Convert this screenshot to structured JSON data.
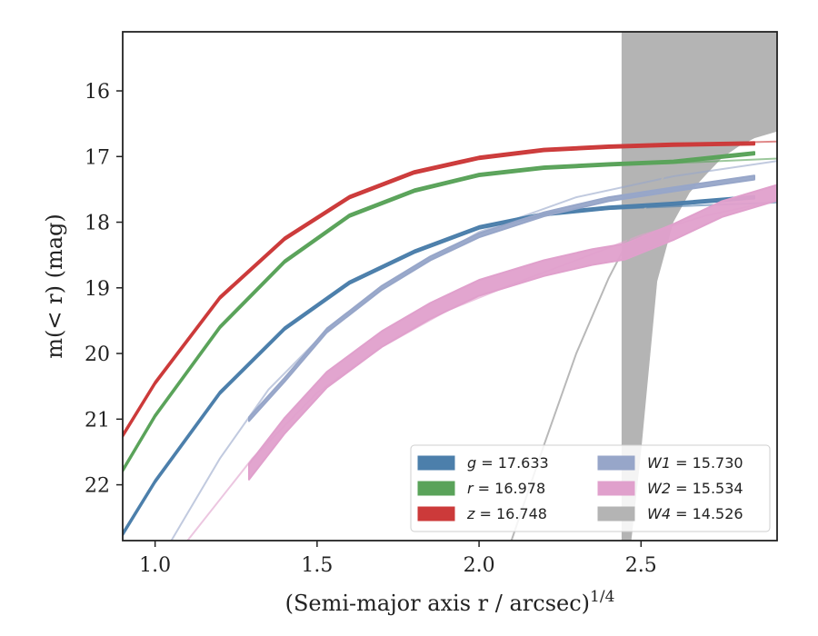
{
  "chart_data": {
    "type": "line",
    "xlabel": "(Semi-major axis r / arcsec)",
    "xlabel_sup": "1/4",
    "ylabel": "m(< r) (mag)",
    "xlim": [
      0.9,
      2.92
    ],
    "ylim": [
      22.85,
      15.1
    ],
    "y_inverted": true,
    "xticks": [
      1.0,
      1.5,
      2.0,
      2.5
    ],
    "xtick_labels": [
      "1.0",
      "1.5",
      "2.0",
      "2.5"
    ],
    "yticks": [
      16,
      17,
      18,
      19,
      20,
      21,
      22
    ],
    "ytick_labels": [
      "16",
      "17",
      "18",
      "19",
      "20",
      "21",
      "22"
    ],
    "legend_position": "lower-right",
    "legend_columns": 2,
    "grid": false,
    "series": [
      {
        "key": "g",
        "name": "g",
        "label_value": "17.633",
        "color": "#4c7fab",
        "style": "band",
        "band_width": 0.04,
        "x": [
          0.9,
          1.0,
          1.2,
          1.4,
          1.6,
          1.8,
          2.0,
          2.2,
          2.4,
          2.6,
          2.85
        ],
        "y": [
          22.75,
          21.95,
          20.6,
          19.62,
          18.92,
          18.45,
          18.08,
          17.88,
          17.78,
          17.72,
          17.62
        ],
        "model_x": [
          2.2,
          2.4,
          2.6,
          2.92
        ],
        "model_y": [
          17.88,
          17.8,
          17.76,
          17.7
        ]
      },
      {
        "key": "r",
        "name": "r",
        "label_value": "16.978",
        "color": "#5aa35a",
        "style": "band",
        "band_width": 0.04,
        "x": [
          0.9,
          1.0,
          1.2,
          1.4,
          1.6,
          1.8,
          2.0,
          2.2,
          2.4,
          2.6,
          2.85
        ],
        "y": [
          21.78,
          20.95,
          19.6,
          18.6,
          17.9,
          17.52,
          17.28,
          17.17,
          17.12,
          17.08,
          16.95
        ],
        "model_x": [
          2.4,
          2.6,
          2.92
        ],
        "model_y": [
          17.12,
          17.1,
          17.03
        ]
      },
      {
        "key": "z",
        "name": "z",
        "label_value": "16.748",
        "color": "#cc3a3a",
        "style": "band",
        "band_width": 0.04,
        "x": [
          0.9,
          1.0,
          1.2,
          1.4,
          1.6,
          1.8,
          2.0,
          2.2,
          2.4,
          2.6,
          2.85
        ],
        "y": [
          21.25,
          20.45,
          19.15,
          18.25,
          17.62,
          17.24,
          17.02,
          16.9,
          16.85,
          16.82,
          16.8
        ],
        "model_x": [
          2.4,
          2.6,
          2.92
        ],
        "model_y": [
          16.85,
          16.81,
          16.77
        ]
      },
      {
        "key": "W1",
        "name": "W1",
        "label_value": "15.730",
        "color": "#97a6c9",
        "style": "band",
        "band_width": 0.06,
        "x": [
          1.29,
          1.4,
          1.53,
          1.7,
          1.85,
          2.0,
          2.2,
          2.4,
          2.6,
          2.85
        ],
        "y": [
          21.0,
          20.4,
          19.65,
          19.0,
          18.55,
          18.2,
          17.88,
          17.65,
          17.5,
          17.32
        ],
        "model_x": [
          1.05,
          1.2,
          1.35,
          1.55,
          1.75,
          2.0,
          2.3,
          2.6,
          2.92
        ],
        "model_y": [
          22.85,
          21.6,
          20.55,
          19.55,
          18.85,
          18.15,
          17.62,
          17.3,
          17.07
        ]
      },
      {
        "key": "W2",
        "name": "W2",
        "label_value": "15.534",
        "color": "#e0a0cc",
        "style": "band",
        "band_width": 0.24,
        "x": [
          1.29,
          1.4,
          1.53,
          1.7,
          1.85,
          2.0,
          2.2,
          2.35,
          2.45,
          2.6,
          2.75,
          2.92
        ],
        "y": [
          21.8,
          21.1,
          20.4,
          19.78,
          19.35,
          19.0,
          18.7,
          18.53,
          18.45,
          18.15,
          17.8,
          17.55
        ],
        "model_x": [
          1.1,
          1.3,
          1.5,
          1.7,
          1.9,
          2.1,
          2.3,
          2.5,
          2.7,
          2.92
        ],
        "model_y": [
          22.85,
          21.6,
          20.6,
          19.9,
          19.35,
          18.95,
          18.58,
          18.2,
          17.9,
          17.67
        ]
      },
      {
        "key": "W4",
        "name": "W4",
        "label_value": "14.526",
        "color": "#b4b4b4",
        "style": "area",
        "x": [
          2.44,
          2.47,
          2.5,
          2.55,
          2.6,
          2.65,
          2.7,
          2.75,
          2.8,
          2.85,
          2.92
        ],
        "y_low": [
          15.1,
          15.1,
          15.1,
          15.1,
          15.1,
          15.1,
          15.1,
          15.1,
          15.1,
          15.1,
          15.1
        ],
        "y_high": [
          22.85,
          22.85,
          21.5,
          18.9,
          18.0,
          17.55,
          17.28,
          17.02,
          16.85,
          16.72,
          16.62
        ],
        "model_x": [
          2.1,
          2.2,
          2.3,
          2.4,
          2.5,
          2.6,
          2.7,
          2.8,
          2.92
        ],
        "model_y": [
          22.85,
          21.4,
          20.0,
          18.85,
          17.9,
          17.05,
          16.4,
          15.95,
          15.55
        ]
      }
    ]
  }
}
